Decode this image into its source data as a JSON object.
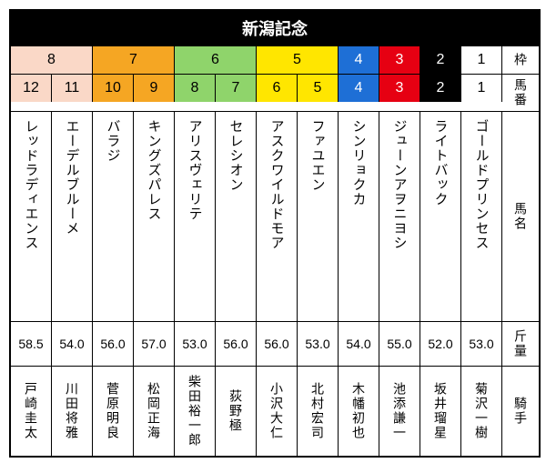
{
  "title": "新潟記念",
  "headers": {
    "waku": "枠",
    "umaban": "馬番",
    "name": "馬名",
    "weight": "斤量",
    "jockey": "騎手"
  },
  "waku_groups": [
    {
      "label": "8",
      "span": 2,
      "bg": "#fad8c7",
      "fg": "#000"
    },
    {
      "label": "7",
      "span": 2,
      "bg": "#f5a623",
      "fg": "#000"
    },
    {
      "label": "6",
      "span": 2,
      "bg": "#8fd46b",
      "fg": "#000"
    },
    {
      "label": "5",
      "span": 2,
      "bg": "#ffe600",
      "fg": "#000"
    },
    {
      "label": "4",
      "span": 1,
      "bg": "#1e6fd6",
      "fg": "#fff"
    },
    {
      "label": "3",
      "span": 1,
      "bg": "#e60012",
      "fg": "#fff"
    },
    {
      "label": "2",
      "span": 1,
      "bg": "#000",
      "fg": "#fff"
    },
    {
      "label": "1",
      "span": 1,
      "bg": "#fff",
      "fg": "#000"
    }
  ],
  "horses": [
    {
      "num": "12",
      "bg": "#fad8c7",
      "fg": "#000",
      "name": "レッドラディエンス",
      "weight": "58.5",
      "jockey": "戸崎圭太"
    },
    {
      "num": "11",
      "bg": "#fad8c7",
      "fg": "#000",
      "name": "エーデルブルーメ",
      "weight": "54.0",
      "jockey": "川田将雅"
    },
    {
      "num": "10",
      "bg": "#f5a623",
      "fg": "#000",
      "name": "バラジ",
      "weight": "56.0",
      "jockey": "菅原明良"
    },
    {
      "num": "9",
      "bg": "#f5a623",
      "fg": "#000",
      "name": "キングズパレス",
      "weight": "57.0",
      "jockey": "松岡正海"
    },
    {
      "num": "8",
      "bg": "#8fd46b",
      "fg": "#000",
      "name": "アリスヴェリテ",
      "weight": "53.0",
      "jockey": "柴田裕一郎"
    },
    {
      "num": "7",
      "bg": "#8fd46b",
      "fg": "#000",
      "name": "セレシオン",
      "weight": "56.0",
      "jockey": "荻野極"
    },
    {
      "num": "6",
      "bg": "#ffe600",
      "fg": "#000",
      "name": "アスクワイルドモア",
      "weight": "56.0",
      "jockey": "小沢大仁"
    },
    {
      "num": "5",
      "bg": "#ffe600",
      "fg": "#000",
      "name": "ファユエン",
      "weight": "53.0",
      "jockey": "北村宏司"
    },
    {
      "num": "4",
      "bg": "#1e6fd6",
      "fg": "#fff",
      "name": "シンリョクカ",
      "weight": "54.0",
      "jockey": "木幡初也"
    },
    {
      "num": "3",
      "bg": "#e60012",
      "fg": "#fff",
      "name": "ジューンアヲニヨシ",
      "weight": "55.0",
      "jockey": "池添謙一"
    },
    {
      "num": "2",
      "bg": "#000",
      "fg": "#fff",
      "name": "ライトバック",
      "weight": "52.0",
      "jockey": "坂井瑠星"
    },
    {
      "num": "1",
      "bg": "#fff",
      "fg": "#000",
      "name": "ゴールドプリンセス",
      "weight": "53.0",
      "jockey": "菊沢一樹"
    }
  ]
}
